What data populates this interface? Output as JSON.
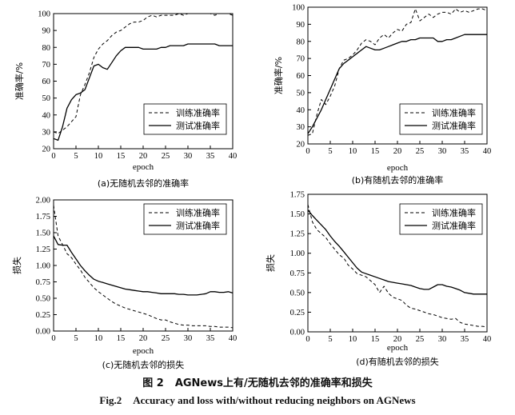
{
  "figure": {
    "caption_cn_label": "图 2",
    "caption_cn_text": "AGNews上有/无随机去邻的准确率和损失",
    "caption_en_label": "Fig.2",
    "caption_en_text": "Accuracy and loss with/without reducing neighbors on AGNews"
  },
  "colors": {
    "line": "#000000",
    "frame": "#000000"
  },
  "chart_data": [
    {
      "type": "line",
      "subtitle": "(a)无随机去邻的准确率",
      "xlabel": "epoch",
      "ylabel": "准确率/%",
      "xlim": [
        0,
        40
      ],
      "ylim": [
        20,
        100
      ],
      "xticks": [
        0,
        5,
        10,
        15,
        20,
        25,
        30,
        35,
        40
      ],
      "yticks": [
        20,
        30,
        40,
        50,
        60,
        70,
        80,
        90,
        100
      ],
      "legend_position": "bottom-right",
      "series": [
        {
          "name": "训练准确率",
          "style": "dashed",
          "x": [
            0,
            1,
            2,
            3,
            4,
            5,
            6,
            7,
            8,
            9,
            10,
            11,
            12,
            13,
            14,
            15,
            16,
            17,
            18,
            19,
            20,
            21,
            22,
            23,
            24,
            25,
            26,
            27,
            28,
            29,
            30,
            31,
            32,
            33,
            34,
            35,
            36,
            37,
            38,
            39,
            40
          ],
          "values": [
            30,
            29,
            31,
            33,
            36,
            39,
            52,
            58,
            65,
            74,
            79,
            82,
            84,
            87,
            89,
            90,
            92,
            94,
            95,
            95,
            96,
            98,
            99,
            98,
            99,
            99,
            99,
            99,
            100,
            99,
            100,
            100,
            100,
            100,
            100,
            100,
            99,
            100,
            100,
            100,
            99
          ]
        },
        {
          "name": "测试准确率",
          "style": "solid",
          "x": [
            0,
            1,
            2,
            3,
            4,
            5,
            6,
            7,
            8,
            9,
            10,
            11,
            12,
            13,
            14,
            15,
            16,
            17,
            18,
            19,
            20,
            21,
            22,
            23,
            24,
            25,
            26,
            27,
            28,
            29,
            30,
            31,
            32,
            33,
            34,
            35,
            36,
            37,
            38,
            39,
            40
          ],
          "values": [
            26,
            25,
            33,
            44,
            49,
            52,
            53,
            55,
            62,
            69,
            70,
            68,
            67,
            71,
            75,
            78,
            80,
            80,
            80,
            80,
            79,
            79,
            79,
            79,
            80,
            80,
            81,
            81,
            81,
            81,
            82,
            82,
            82,
            82,
            82,
            82,
            82,
            81,
            81,
            81,
            81
          ]
        }
      ]
    },
    {
      "type": "line",
      "subtitle": "(b)有随机去邻的准确率",
      "xlabel": "epoch",
      "ylabel": "准确率/%",
      "xlim": [
        0,
        40
      ],
      "ylim": [
        20,
        100
      ],
      "xticks": [
        0,
        5,
        10,
        15,
        20,
        25,
        30,
        35,
        40
      ],
      "yticks": [
        20,
        30,
        40,
        50,
        60,
        70,
        80,
        90,
        100
      ],
      "legend_position": "bottom-right",
      "series": [
        {
          "name": "训练准确率",
          "style": "dashed",
          "x": [
            0,
            1,
            2,
            3,
            4,
            5,
            6,
            7,
            8,
            9,
            10,
            11,
            12,
            13,
            14,
            15,
            16,
            17,
            18,
            19,
            20,
            21,
            22,
            23,
            24,
            25,
            26,
            27,
            28,
            29,
            30,
            31,
            32,
            33,
            34,
            35,
            36,
            37,
            38,
            39,
            40
          ],
          "values": [
            25,
            26,
            37,
            46,
            43,
            48,
            54,
            64,
            69,
            70,
            72,
            75,
            79,
            81,
            80,
            78,
            82,
            84,
            82,
            85,
            87,
            86,
            90,
            91,
            99,
            92,
            94,
            96,
            94,
            96,
            97,
            97,
            96,
            99,
            97,
            98,
            97,
            98,
            99,
            99,
            98
          ]
        },
        {
          "name": "测试准确率",
          "style": "solid",
          "x": [
            0,
            1,
            2,
            3,
            4,
            5,
            6,
            7,
            8,
            9,
            10,
            11,
            12,
            13,
            14,
            15,
            16,
            17,
            18,
            19,
            20,
            21,
            22,
            23,
            24,
            25,
            26,
            27,
            28,
            29,
            30,
            31,
            32,
            33,
            34,
            35,
            36,
            37,
            38,
            39,
            40
          ],
          "values": [
            26,
            30,
            35,
            40,
            46,
            52,
            58,
            64,
            67,
            69,
            71,
            73,
            75,
            77,
            76,
            75,
            75,
            76,
            77,
            78,
            79,
            80,
            80,
            81,
            81,
            82,
            82,
            82,
            82,
            80,
            80,
            81,
            81,
            82,
            83,
            84,
            84,
            84,
            84,
            84,
            84
          ]
        }
      ]
    },
    {
      "type": "line",
      "subtitle": "(c)无随机去邻的损失",
      "xlabel": "epoch",
      "ylabel": "损失",
      "xlim": [
        0,
        40
      ],
      "ylim": [
        0,
        2.0
      ],
      "xticks": [
        0,
        5,
        10,
        15,
        20,
        25,
        30,
        35,
        40
      ],
      "yticks": [
        0.0,
        0.25,
        0.5,
        0.75,
        1.0,
        1.25,
        1.5,
        1.75,
        2.0
      ],
      "ytick_labels": [
        "0.00",
        "0.25",
        "0.50",
        "0.75",
        "1.00",
        "1.25",
        "1.50",
        "1.75",
        "2.00"
      ],
      "legend_position": "top-right",
      "series": [
        {
          "name": "训练准确率",
          "style": "dashed",
          "x": [
            0,
            1,
            2,
            3,
            4,
            5,
            6,
            7,
            8,
            9,
            10,
            11,
            12,
            13,
            14,
            15,
            16,
            17,
            18,
            19,
            20,
            21,
            22,
            23,
            24,
            25,
            26,
            27,
            28,
            29,
            30,
            31,
            32,
            33,
            34,
            35,
            36,
            37,
            38,
            39,
            40
          ],
          "values": [
            1.92,
            1.45,
            1.32,
            1.18,
            1.12,
            1.02,
            0.93,
            0.82,
            0.74,
            0.66,
            0.6,
            0.55,
            0.5,
            0.45,
            0.41,
            0.38,
            0.35,
            0.33,
            0.31,
            0.29,
            0.27,
            0.25,
            0.22,
            0.19,
            0.17,
            0.17,
            0.14,
            0.12,
            0.1,
            0.09,
            0.09,
            0.08,
            0.08,
            0.08,
            0.08,
            0.07,
            0.07,
            0.06,
            0.06,
            0.06,
            0.05
          ]
        },
        {
          "name": "测试准确率",
          "style": "solid",
          "x": [
            0,
            1,
            2,
            3,
            4,
            5,
            6,
            7,
            8,
            9,
            10,
            11,
            12,
            13,
            14,
            15,
            16,
            17,
            18,
            19,
            20,
            21,
            22,
            23,
            24,
            25,
            26,
            27,
            28,
            29,
            30,
            31,
            32,
            33,
            34,
            35,
            36,
            37,
            38,
            39,
            40
          ],
          "values": [
            1.45,
            1.32,
            1.31,
            1.31,
            1.2,
            1.1,
            1.0,
            0.92,
            0.85,
            0.79,
            0.76,
            0.74,
            0.72,
            0.7,
            0.68,
            0.66,
            0.64,
            0.63,
            0.62,
            0.61,
            0.6,
            0.6,
            0.59,
            0.58,
            0.57,
            0.57,
            0.57,
            0.57,
            0.56,
            0.56,
            0.55,
            0.55,
            0.55,
            0.56,
            0.57,
            0.6,
            0.6,
            0.59,
            0.59,
            0.6,
            0.58
          ]
        }
      ]
    },
    {
      "type": "line",
      "subtitle": "(d)有随机去邻的损失",
      "xlabel": "epoch",
      "ylabel": "损失",
      "xlim": [
        0,
        40
      ],
      "ylim": [
        0,
        1.75
      ],
      "xticks": [
        0,
        5,
        10,
        15,
        20,
        25,
        30,
        35,
        40
      ],
      "yticks": [
        0.0,
        0.25,
        0.5,
        0.75,
        1.0,
        1.25,
        1.5,
        1.75
      ],
      "ytick_labels": [
        "0.00",
        "0.25",
        "0.50",
        "0.75",
        "1.00",
        "1.25",
        "1.50",
        "1.75"
      ],
      "legend_position": "top-right",
      "series": [
        {
          "name": "训练准确率",
          "style": "dashed",
          "x": [
            0,
            1,
            2,
            3,
            4,
            5,
            6,
            7,
            8,
            9,
            10,
            11,
            12,
            13,
            14,
            15,
            16,
            17,
            18,
            19,
            20,
            21,
            22,
            23,
            24,
            25,
            26,
            27,
            28,
            29,
            30,
            31,
            32,
            33,
            34,
            35,
            36,
            37,
            38,
            39,
            40
          ],
          "values": [
            1.62,
            1.4,
            1.3,
            1.25,
            1.2,
            1.12,
            1.05,
            0.98,
            0.94,
            0.85,
            0.8,
            0.74,
            0.72,
            0.7,
            0.65,
            0.6,
            0.5,
            0.58,
            0.49,
            0.44,
            0.42,
            0.4,
            0.34,
            0.3,
            0.29,
            0.27,
            0.25,
            0.23,
            0.22,
            0.2,
            0.18,
            0.17,
            0.16,
            0.17,
            0.12,
            0.1,
            0.09,
            0.08,
            0.07,
            0.07,
            0.06
          ]
        },
        {
          "name": "测试准确率",
          "style": "solid",
          "x": [
            0,
            1,
            2,
            3,
            4,
            5,
            6,
            7,
            8,
            9,
            10,
            11,
            12,
            13,
            14,
            15,
            16,
            17,
            18,
            19,
            20,
            21,
            22,
            23,
            24,
            25,
            26,
            27,
            28,
            29,
            30,
            31,
            32,
            33,
            34,
            35,
            36,
            37,
            38,
            39,
            40
          ],
          "values": [
            1.55,
            1.48,
            1.42,
            1.36,
            1.3,
            1.22,
            1.15,
            1.09,
            1.02,
            0.95,
            0.88,
            0.81,
            0.76,
            0.74,
            0.72,
            0.7,
            0.68,
            0.66,
            0.64,
            0.63,
            0.62,
            0.61,
            0.6,
            0.59,
            0.57,
            0.55,
            0.54,
            0.54,
            0.57,
            0.6,
            0.6,
            0.58,
            0.57,
            0.55,
            0.53,
            0.5,
            0.49,
            0.48,
            0.48,
            0.48,
            0.48
          ]
        }
      ]
    }
  ]
}
